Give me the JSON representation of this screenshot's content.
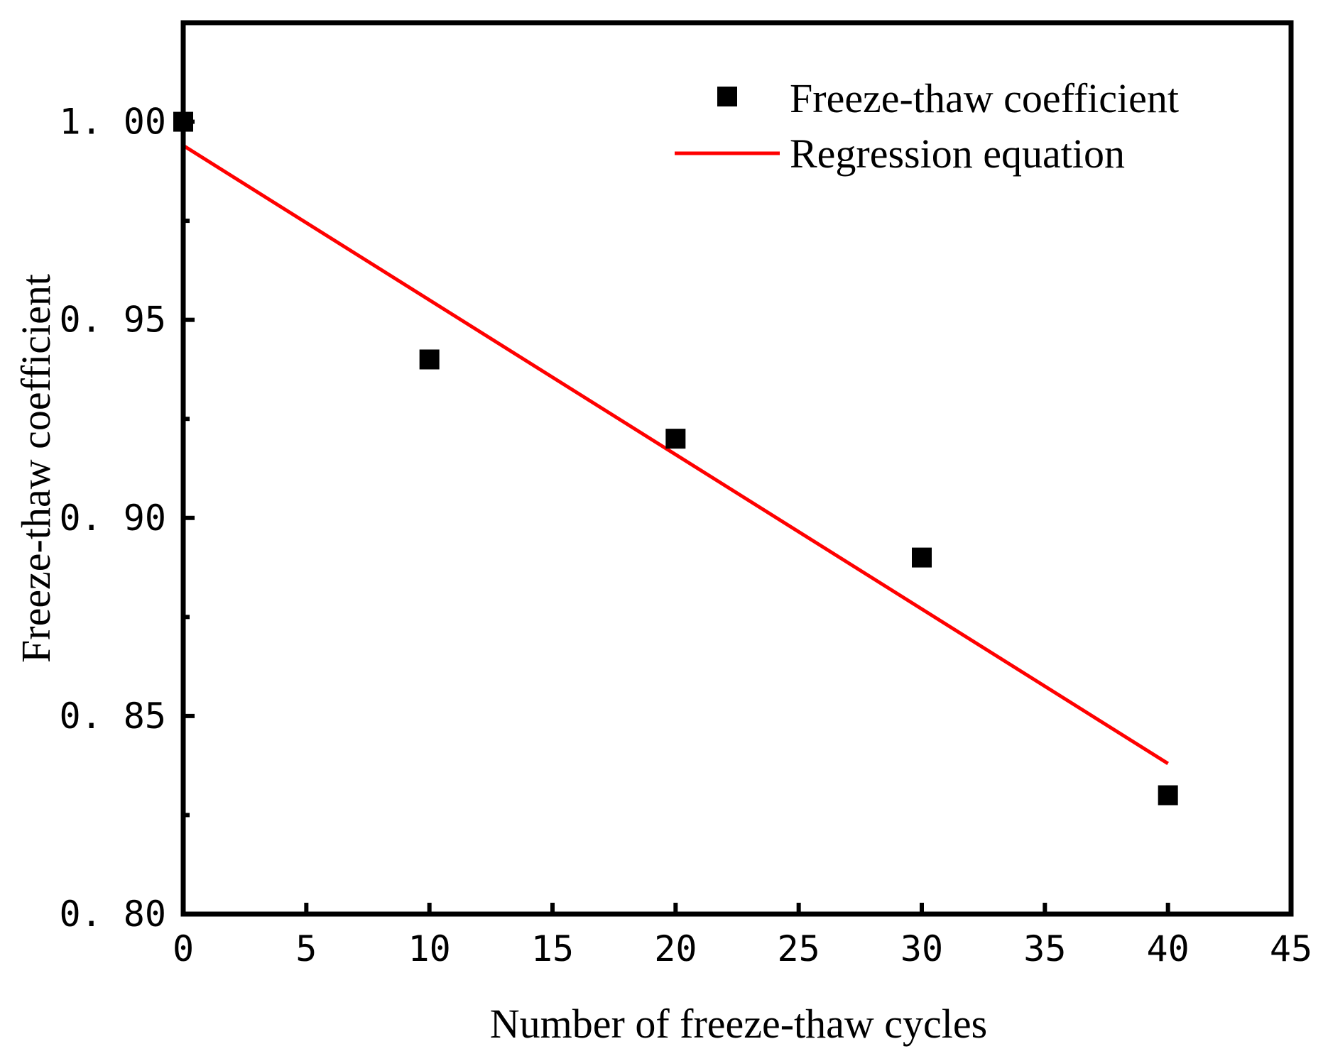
{
  "chart_data": {
    "type": "scatter",
    "xlabel": "Number of freeze-thaw cycles",
    "ylabel": "Freeze-thaw coefficient",
    "xlim": [
      0,
      45
    ],
    "ylim": [
      0.8,
      1.025
    ],
    "x_ticks": [
      0,
      5,
      10,
      15,
      20,
      25,
      30,
      35,
      40,
      45
    ],
    "x_tick_labels": [
      "0",
      "5",
      "10",
      "15",
      "20",
      "25",
      "30",
      "35",
      "40",
      "45"
    ],
    "y_ticks": [
      0.8,
      0.85,
      0.9,
      0.95,
      1.0
    ],
    "y_tick_labels": [
      "0. 80",
      "0. 85",
      "0. 90",
      "0. 95",
      "1. 00"
    ],
    "y_minor_ticks": [
      0.825,
      0.875,
      0.925,
      0.975
    ],
    "legend_position": "top-right",
    "series": [
      {
        "name": "Freeze-thaw coefficient",
        "type": "scatter",
        "marker": "square",
        "color": "#000000",
        "x": [
          0,
          10,
          20,
          30,
          40
        ],
        "y": [
          1.0,
          0.94,
          0.92,
          0.89,
          0.83
        ]
      },
      {
        "name": "Regression equation",
        "type": "line",
        "color": "#ff0000",
        "x": [
          0,
          40
        ],
        "y": [
          0.994,
          0.838
        ]
      }
    ]
  }
}
